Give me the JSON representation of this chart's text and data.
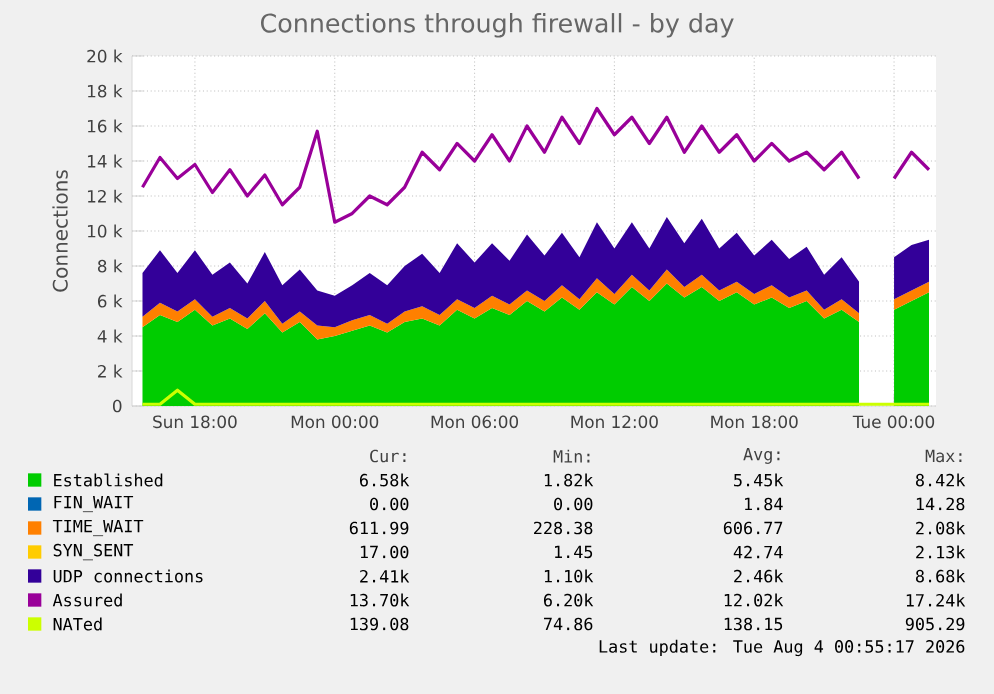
{
  "chart_data": {
    "type": "area",
    "title": "Connections through firewall - by day",
    "ylabel": "Connections",
    "stacked": true,
    "grid": true,
    "legend": "bottom",
    "categories": [
      null,
      null,
      null,
      "Sun 18:00",
      null,
      null,
      null,
      null,
      null,
      null,
      null,
      "Mon 00:00",
      null,
      null,
      null,
      null,
      null,
      null,
      null,
      "Mon 06:00",
      null,
      null,
      null,
      null,
      null,
      null,
      null,
      "Mon 12:00",
      null,
      null,
      null,
      null,
      null,
      null,
      null,
      "Mon 18:00",
      null,
      null,
      null,
      null,
      null,
      null,
      null,
      "Tue 00:00",
      null,
      null
    ],
    "ylim": [
      0,
      20000
    ],
    "yticks": [
      {
        "value": 0,
        "label": "0"
      },
      {
        "value": 2000,
        "label": "2 k"
      },
      {
        "value": 4000,
        "label": "4 k"
      },
      {
        "value": 6000,
        "label": "6 k"
      },
      {
        "value": 8000,
        "label": "8 k"
      },
      {
        "value": 10000,
        "label": "10 k"
      },
      {
        "value": 12000,
        "label": "12 k"
      },
      {
        "value": 14000,
        "label": "14 k"
      },
      {
        "value": 16000,
        "label": "16 k"
      },
      {
        "value": 18000,
        "label": "18 k"
      },
      {
        "value": 20000,
        "label": "20 k"
      }
    ],
    "series": [
      {
        "name": "Established",
        "color": "#00cc00",
        "values": [
          4500,
          5200,
          4800,
          5500,
          4600,
          5000,
          4400,
          5300,
          4200,
          4800,
          3800,
          4000,
          4300,
          4600,
          4200,
          4800,
          5000,
          4600,
          5500,
          5000,
          5600,
          5200,
          6000,
          5400,
          6200,
          5500,
          6500,
          5800,
          6800,
          6000,
          7000,
          6200,
          6800,
          6000,
          6500,
          5800,
          6200,
          5600,
          6000,
          5000,
          5500,
          4800,
          null,
          5500,
          6000,
          6500
        ]
      },
      {
        "name": "FIN_WAIT",
        "color": "#0066b3",
        "values": [
          null,
          null,
          null,
          null,
          null,
          null,
          null,
          null,
          null,
          null,
          null,
          null,
          null,
          null,
          null,
          null,
          null,
          null,
          null,
          null,
          null,
          null,
          null,
          null,
          null,
          null,
          null,
          null,
          null,
          null,
          null,
          null,
          null,
          null,
          null,
          null,
          null,
          null,
          null,
          null,
          null,
          null,
          null,
          null,
          null,
          null
        ]
      },
      {
        "name": "TIME_WAIT",
        "color": "#ff8000",
        "values": [
          600,
          700,
          600,
          600,
          500,
          600,
          600,
          700,
          500,
          600,
          800,
          500,
          600,
          600,
          500,
          600,
          700,
          600,
          600,
          600,
          700,
          600,
          600,
          600,
          700,
          600,
          800,
          600,
          700,
          600,
          800,
          600,
          700,
          600,
          600,
          600,
          700,
          600,
          600,
          500,
          600,
          500,
          null,
          600,
          600,
          600
        ]
      },
      {
        "name": "SYN_SENT",
        "color": "#ffcc00",
        "values": [
          null,
          null,
          null,
          null,
          null,
          null,
          null,
          null,
          null,
          null,
          null,
          null,
          null,
          null,
          null,
          null,
          null,
          null,
          null,
          null,
          null,
          null,
          null,
          null,
          null,
          null,
          null,
          null,
          null,
          null,
          null,
          null,
          null,
          null,
          null,
          null,
          null,
          null,
          null,
          null,
          null,
          null,
          null,
          null,
          null,
          null
        ]
      },
      {
        "name": "UDP connections",
        "color": "#330099",
        "values": [
          2500,
          3000,
          2200,
          2800,
          2400,
          2600,
          2000,
          2800,
          2200,
          2400,
          2000,
          1800,
          2000,
          2400,
          2200,
          2600,
          3000,
          2400,
          3200,
          2600,
          3000,
          2500,
          3200,
          2600,
          3000,
          2400,
          3200,
          2600,
          3000,
          2400,
          3000,
          2500,
          3200,
          2400,
          2800,
          2200,
          2600,
          2200,
          2500,
          2000,
          2400,
          1800,
          null,
          2400,
          2600,
          2400
        ]
      },
      {
        "name": "Assured",
        "color": "#990099",
        "type": "line",
        "values": [
          12500,
          14200,
          13000,
          13800,
          12200,
          13500,
          12000,
          13200,
          11500,
          12500,
          15700,
          10500,
          11000,
          12000,
          11500,
          12500,
          14500,
          13500,
          15000,
          14000,
          15500,
          14000,
          16000,
          14500,
          16500,
          15000,
          17000,
          15500,
          16500,
          15000,
          16500,
          14500,
          16000,
          14500,
          15500,
          14000,
          15000,
          14000,
          14500,
          13500,
          14500,
          13000,
          null,
          13000,
          14500,
          13500
        ]
      },
      {
        "name": "NATed",
        "color": "#ccff00",
        "type": "line",
        "values": [
          100,
          100,
          900,
          100,
          100,
          100,
          100,
          100,
          100,
          100,
          100,
          100,
          100,
          100,
          100,
          100,
          100,
          100,
          100,
          100,
          100,
          100,
          100,
          100,
          100,
          100,
          100,
          100,
          100,
          100,
          100,
          100,
          100,
          100,
          100,
          100,
          100,
          100,
          100,
          100,
          100,
          100,
          100,
          100,
          100,
          100
        ]
      }
    ],
    "annotations": [
      "Cur:",
      "Min:",
      "Avg:",
      "Max:",
      "6.58k",
      "1.82k",
      "5.45k",
      "8.42k",
      "0.00",
      "0.00",
      "1.84",
      "14.28",
      "611.99",
      "228.38",
      "606.77",
      "2.08k",
      "17.00",
      "1.45",
      "42.74",
      "2.13k",
      "2.41k",
      "1.10k",
      "2.46k",
      "8.68k",
      "13.70k",
      "6.20k",
      "12.02k",
      "17.24k",
      "139.08",
      "74.86",
      "138.15",
      "905.29",
      "Last update: Tue Aug  4 00:55:17 2026"
    ]
  }
}
